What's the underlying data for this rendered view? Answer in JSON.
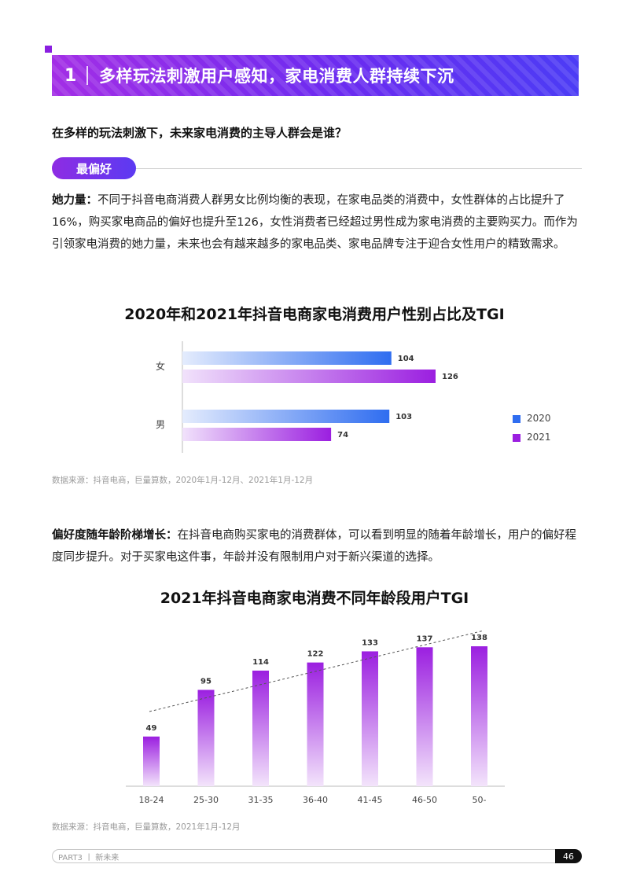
{
  "header": {
    "section_number": "1",
    "title": "多样玩法刺激用户感知，家电消费人群持续下沉"
  },
  "question": "在多样的玩法刺激下，未来家电消费的主导人群会是谁？",
  "tag": "最偏好",
  "paragraph1": {
    "lead": "她力量：",
    "body": "不同于抖音电商消费人群男女比例均衡的表现，在家电品类的消费中，女性群体的占比提升了16%，购买家电商品的偏好也提升至126，女性消费者已经超过男性成为家电消费的主要购买力。而作为引领家电消费的她力量，未来也会有越来越多的家电品类、家电品牌专注于迎合女性用户的精致需求。"
  },
  "paragraph2": {
    "lead": "偏好度随年龄阶梯增长：",
    "body": "在抖音电商购买家电的消费群体，可以看到明显的随着年龄增长，用户的偏好程度同步提升。对于买家电这件事，年龄并没有限制用户对于新兴渠道的选择。"
  },
  "source1": "数据来源：抖音电商，巨量算数，2020年1月-12月、2021年1月-12月",
  "source2": "数据来源：抖音电商，巨量算数，2021年1月-12月",
  "footer": {
    "part": "PART3 丨 新未来",
    "page": "46"
  },
  "colors": {
    "accent": "#8a1fe0",
    "series_2020": "#2f6df0",
    "series_2021": "#9b1fe0"
  },
  "chart_data": [
    {
      "type": "bar",
      "orientation": "horizontal",
      "title": "2020年和2021年抖音电商家电消费用户性别占比及TGI",
      "categories": [
        "女",
        "男"
      ],
      "series": [
        {
          "name": "2020",
          "values": [
            104,
            103
          ]
        },
        {
          "name": "2021",
          "values": [
            126,
            74
          ]
        }
      ],
      "legend": "right",
      "grid": false
    },
    {
      "type": "bar",
      "title": "2021年抖音电商家电消费不同年龄段用户TGI",
      "categories": [
        "18-24",
        "25-30",
        "31-35",
        "36-40",
        "41-45",
        "46-50",
        "50-"
      ],
      "values": [
        49,
        95,
        114,
        122,
        133,
        137,
        138
      ],
      "trendline": "dashed",
      "grid": false
    }
  ]
}
